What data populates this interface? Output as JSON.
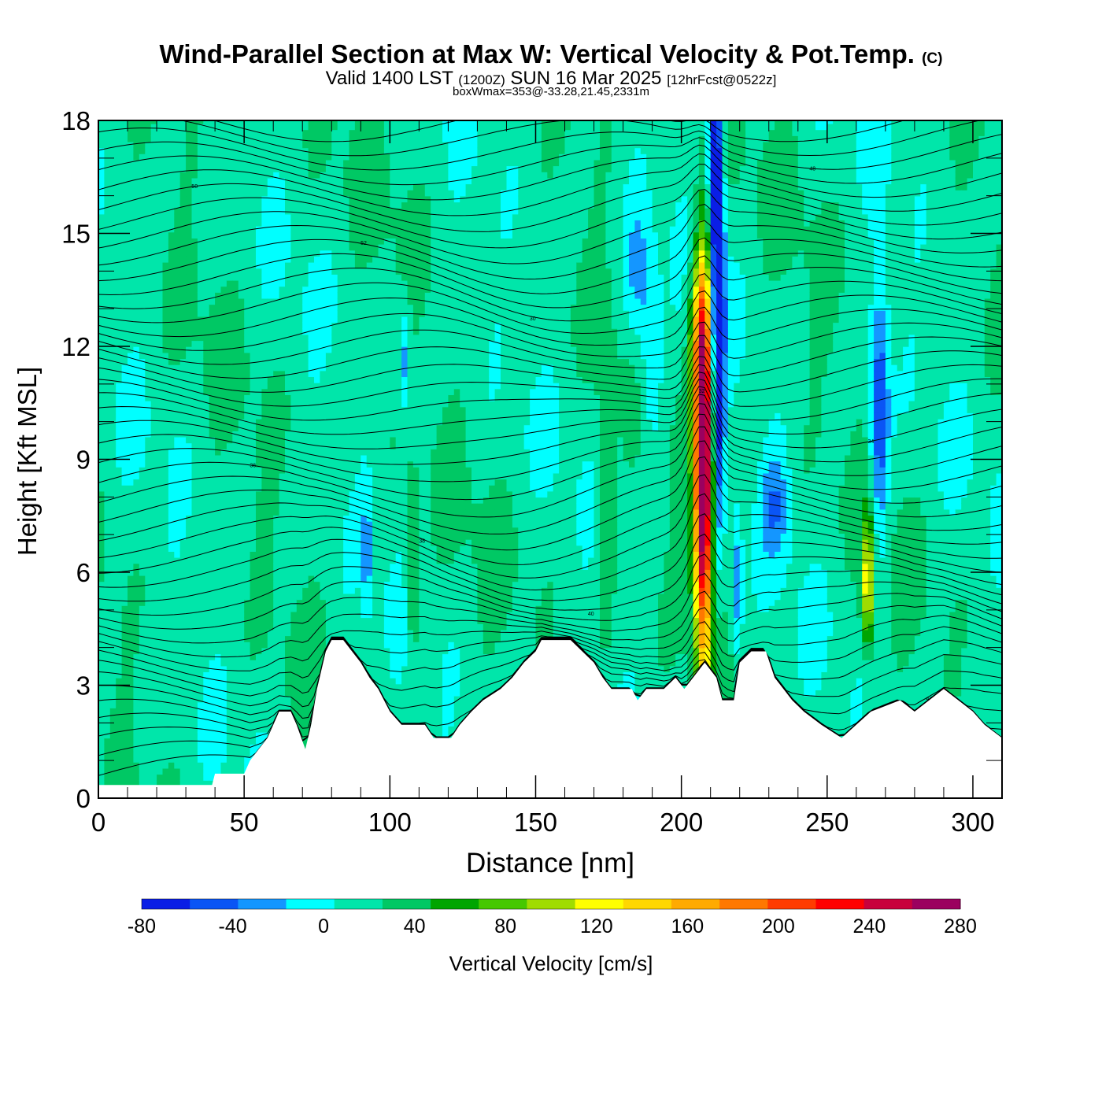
{
  "title": {
    "main": "Wind-Parallel Section at Max W: Vertical Velocity & Pot.Temp.",
    "copyright": "(C)",
    "valid_prefix": "Valid 1400 LST",
    "valid_utc": "(1200Z)",
    "valid_date": "SUN 16 Mar 2025",
    "forecast": "[12hrFcst@0522z]",
    "box_info": "boxWmax=353@-33.28,21.45,2331m"
  },
  "chart_data": {
    "type": "heatmap",
    "xlabel": "Distance [nm]",
    "ylabel": "Height [Kft MSL]",
    "xlim": [
      0,
      310
    ],
    "ylim": [
      0,
      18
    ],
    "x_ticks": [
      "0",
      "50",
      "100",
      "150",
      "200",
      "250",
      "300"
    ],
    "y_ticks": [
      "0",
      "3",
      "6",
      "9",
      "12",
      "15",
      "18"
    ],
    "colorbar": {
      "label": "Vertical Velocity [cm/s]",
      "tick_labels": [
        "-80",
        "-40",
        "0",
        "40",
        "80",
        "120",
        "160",
        "200",
        "240",
        "280"
      ],
      "bounds": [
        -80,
        -60,
        -40,
        -20,
        0,
        20,
        40,
        60,
        80,
        100,
        120,
        140,
        160,
        180,
        200,
        220,
        240,
        260,
        280
      ],
      "colors": [
        "#0a1ee6",
        "#0a55f5",
        "#1496ff",
        "#00ffff",
        "#00e6aa",
        "#00c864",
        "#00a500",
        "#46c800",
        "#a0dc00",
        "#ffff00",
        "#ffd700",
        "#ffaa00",
        "#ff7800",
        "#ff3c00",
        "#ff0000",
        "#c8003c",
        "#9b005f"
      ]
    },
    "terrain_kft": [
      [
        0,
        0.35
      ],
      [
        39,
        0.35
      ],
      [
        40,
        0.65
      ],
      [
        50,
        0.65
      ],
      [
        52,
        1.0
      ],
      [
        55,
        1.3
      ],
      [
        58,
        1.6
      ],
      [
        60,
        1.95
      ],
      [
        62,
        2.3
      ],
      [
        66,
        2.3
      ],
      [
        68,
        1.95
      ],
      [
        71,
        1.3
      ],
      [
        73,
        1.95
      ],
      [
        75,
        2.9
      ],
      [
        78,
        3.9
      ],
      [
        80,
        4.2
      ],
      [
        84,
        4.2
      ],
      [
        87,
        3.9
      ],
      [
        90,
        3.6
      ],
      [
        93,
        3.2
      ],
      [
        96,
        2.9
      ],
      [
        100,
        2.3
      ],
      [
        104,
        1.95
      ],
      [
        112,
        1.95
      ],
      [
        115,
        1.6
      ],
      [
        121,
        1.6
      ],
      [
        124,
        1.95
      ],
      [
        128,
        2.3
      ],
      [
        132,
        2.6
      ],
      [
        138,
        2.9
      ],
      [
        142,
        3.2
      ],
      [
        146,
        3.6
      ],
      [
        150,
        3.9
      ],
      [
        152,
        4.2
      ],
      [
        162,
        4.2
      ],
      [
        166,
        3.9
      ],
      [
        170,
        3.6
      ],
      [
        173,
        3.2
      ],
      [
        176,
        2.9
      ],
      [
        183,
        2.9
      ],
      [
        185,
        2.6
      ],
      [
        188,
        2.9
      ],
      [
        194,
        2.9
      ],
      [
        198,
        3.2
      ],
      [
        201,
        2.9
      ],
      [
        204,
        3.2
      ],
      [
        208,
        3.6
      ],
      [
        212,
        3.2
      ],
      [
        214,
        2.6
      ],
      [
        218,
        2.6
      ],
      [
        220,
        3.6
      ],
      [
        224,
        3.9
      ],
      [
        229,
        3.9
      ],
      [
        232,
        3.2
      ],
      [
        235,
        2.9
      ],
      [
        238,
        2.6
      ],
      [
        242,
        2.3
      ],
      [
        248,
        1.95
      ],
      [
        255,
        1.6
      ],
      [
        260,
        1.95
      ],
      [
        265,
        2.3
      ],
      [
        275,
        2.6
      ],
      [
        280,
        2.3
      ],
      [
        285,
        2.6
      ],
      [
        290,
        2.9
      ],
      [
        295,
        2.6
      ],
      [
        300,
        2.3
      ],
      [
        304,
        1.95
      ],
      [
        310,
        1.6
      ]
    ],
    "theta_labels": [
      "46",
      "44",
      "43",
      "40",
      "38",
      "36",
      "34",
      "32",
      "30",
      "52",
      "50",
      "48"
    ],
    "dominant_feature": "Strong updraft core near 205-210 nm (up to ~280 cm/s, surface to ~13 kft) with adjacent downdraft (-80 cm/s) near 212 nm"
  }
}
